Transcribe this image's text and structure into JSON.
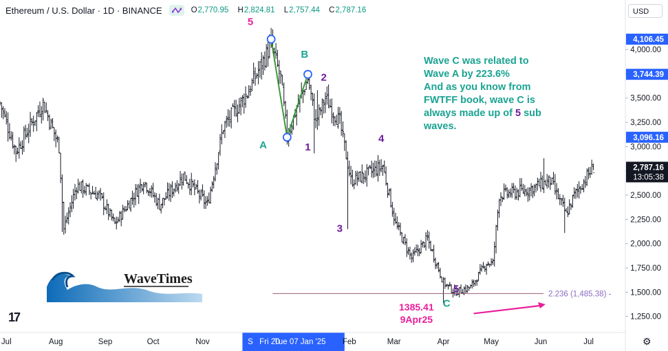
{
  "header": {
    "title": "Ethereum / U.S. Dollar · 1D · BINANCE",
    "ohlc": [
      {
        "label": "O",
        "value": "2,770.95"
      },
      {
        "label": "H",
        "value": "2,824.81"
      },
      {
        "label": "L",
        "value": "2,757.44"
      },
      {
        "label": "C",
        "value": "2,787.16"
      }
    ],
    "currency": "USD"
  },
  "annotation": {
    "line1": "Wave C was related to",
    "line2": "Wave A by 223.6%",
    "line3": "And as you know from",
    "line4": "FWTFF book, wave C is",
    "line5a": "always made up of ",
    "line5b": "5",
    "line5c": " sub",
    "line6": "waves."
  },
  "low_label": {
    "price": "1385.41",
    "date": "9Apr25"
  },
  "logo": {
    "text": "WaveTimes"
  },
  "tv_logo": "17",
  "colors": {
    "up": "#089981",
    "candle": "#131722",
    "pink": "#e91e9b",
    "teal": "#1aa392",
    "purple": "#6a1b9a",
    "fib": "#8c6bc0"
  },
  "chart_data": {
    "type": "ohlc",
    "y_ticks": [
      {
        "value": 4000,
        "label": "4,000.00"
      },
      {
        "value": 3750,
        "label": "3,750.00"
      },
      {
        "value": 3500,
        "label": "3,500.00"
      },
      {
        "value": 3250,
        "label": "3,250.00"
      },
      {
        "value": 3000,
        "label": "3,000.00"
      },
      {
        "value": 2750,
        "label": "2,750.00"
      },
      {
        "value": 2500,
        "label": "2,500.00"
      },
      {
        "value": 2250,
        "label": "2,250.00"
      },
      {
        "value": 2000,
        "label": "2,000.00"
      },
      {
        "value": 1750,
        "label": "1,750.00"
      },
      {
        "value": 1500,
        "label": "1,500.00"
      },
      {
        "value": 1250,
        "label": "1,250.00"
      }
    ],
    "ylim": [
      1085,
      4510
    ],
    "x_ticks": [
      {
        "day": 4,
        "label": "Jul"
      },
      {
        "day": 35,
        "label": "Aug"
      },
      {
        "day": 66,
        "label": "Sep"
      },
      {
        "day": 96,
        "label": "Oct"
      },
      {
        "day": 127,
        "label": "Nov"
      },
      {
        "day": 157,
        "label": "S"
      },
      {
        "day": 169,
        "label": "Fri 20"
      },
      {
        "day": 188,
        "label": "Tue 07 Jan '25"
      },
      {
        "day": 219,
        "label": "Feb"
      },
      {
        "day": 247,
        "label": "Mar"
      },
      {
        "day": 278,
        "label": "Apr"
      },
      {
        "day": 308,
        "label": "May"
      },
      {
        "day": 339,
        "label": "Jun"
      },
      {
        "day": 369,
        "label": "Jul"
      }
    ],
    "x_range_days": [
      0,
      383
    ],
    "highlight_range": [
      152,
      216
    ],
    "price_labels": [
      {
        "value": 4106.45,
        "label": "4,106.45",
        "color": "#2962ff"
      },
      {
        "value": 3744.39,
        "label": "3,744.39",
        "color": "#2962ff"
      },
      {
        "value": 3096.16,
        "label": "3,096.16",
        "color": "#2962ff"
      },
      {
        "value": 2787.16,
        "label": "2,787.16",
        "color": "#131722"
      }
    ],
    "countdown": "13:05:38",
    "anchors": [
      {
        "day": 0,
        "price": 3450
      },
      {
        "day": 10,
        "price": 2950
      },
      {
        "day": 27,
        "price": 3450
      },
      {
        "day": 37,
        "price": 3000
      },
      {
        "day": 40,
        "price": 2150
      },
      {
        "day": 48,
        "price": 2600
      },
      {
        "day": 62,
        "price": 2500
      },
      {
        "day": 72,
        "price": 2200
      },
      {
        "day": 90,
        "price": 2650
      },
      {
        "day": 100,
        "price": 2400
      },
      {
        "day": 115,
        "price": 2700
      },
      {
        "day": 130,
        "price": 2400
      },
      {
        "day": 140,
        "price": 3200
      },
      {
        "day": 155,
        "price": 3550
      },
      {
        "day": 170,
        "price": 4050
      },
      {
        "day": 176,
        "price": 3700
      },
      {
        "day": 180,
        "price": 3100
      },
      {
        "day": 186,
        "price": 3400
      },
      {
        "day": 193,
        "price": 3700
      },
      {
        "day": 198,
        "price": 3250
      },
      {
        "day": 204,
        "price": 3500
      },
      {
        "day": 213,
        "price": 3250
      },
      {
        "day": 220,
        "price": 2650
      },
      {
        "day": 228,
        "price": 2700
      },
      {
        "day": 240,
        "price": 2800
      },
      {
        "day": 248,
        "price": 2200
      },
      {
        "day": 258,
        "price": 1850
      },
      {
        "day": 268,
        "price": 2050
      },
      {
        "day": 278,
        "price": 1600
      },
      {
        "day": 285,
        "price": 1500
      },
      {
        "day": 295,
        "price": 1550
      },
      {
        "day": 305,
        "price": 1800
      },
      {
        "day": 309,
        "price": 1800
      },
      {
        "day": 313,
        "price": 2500
      },
      {
        "day": 330,
        "price": 2550
      },
      {
        "day": 345,
        "price": 2650
      },
      {
        "day": 355,
        "price": 2300
      },
      {
        "day": 360,
        "price": 2500
      },
      {
        "day": 372,
        "price": 2787
      }
    ],
    "spikes": [
      {
        "day": 39,
        "low": 2120
      },
      {
        "day": 218,
        "low": 2150
      },
      {
        "day": 199,
        "high": 3580
      },
      {
        "day": 197,
        "low": 2930
      },
      {
        "day": 278,
        "low": 1385
      },
      {
        "day": 354,
        "low": 2110
      },
      {
        "day": 341,
        "high": 2880
      }
    ],
    "abc_path": [
      {
        "day": 170,
        "price": 4106.45
      },
      {
        "day": 180,
        "price": 3096.16
      },
      {
        "day": 193,
        "price": 3744.39
      }
    ],
    "wave_labels": [
      {
        "text": "5",
        "day": 157,
        "price": 4250,
        "color": "#e91e9b"
      },
      {
        "text": "B",
        "day": 191,
        "price": 3915,
        "color": "#1aa392"
      },
      {
        "text": "A",
        "day": 165,
        "price": 2980,
        "color": "#1aa392"
      },
      {
        "text": "2",
        "day": 203,
        "price": 3680,
        "color": "#6a1b9a"
      },
      {
        "text": "1",
        "day": 193,
        "price": 2960,
        "color": "#6a1b9a"
      },
      {
        "text": "4",
        "day": 239,
        "price": 3050,
        "color": "#6a1b9a"
      },
      {
        "text": "3",
        "day": 213,
        "price": 2120,
        "color": "#6a1b9a"
      },
      {
        "text": "5",
        "day": 286,
        "price": 1500,
        "color": "#6a1b9a"
      },
      {
        "text": "C",
        "day": 280,
        "price": 1350,
        "color": "#1aa392"
      }
    ],
    "fib": {
      "value": 1485.38,
      "start_day": 171,
      "label": "2.236 (1,485.38)"
    },
    "arrow": {
      "start_day": 297,
      "start_price": 1280,
      "end_day": 342,
      "end_price": 1375
    }
  }
}
